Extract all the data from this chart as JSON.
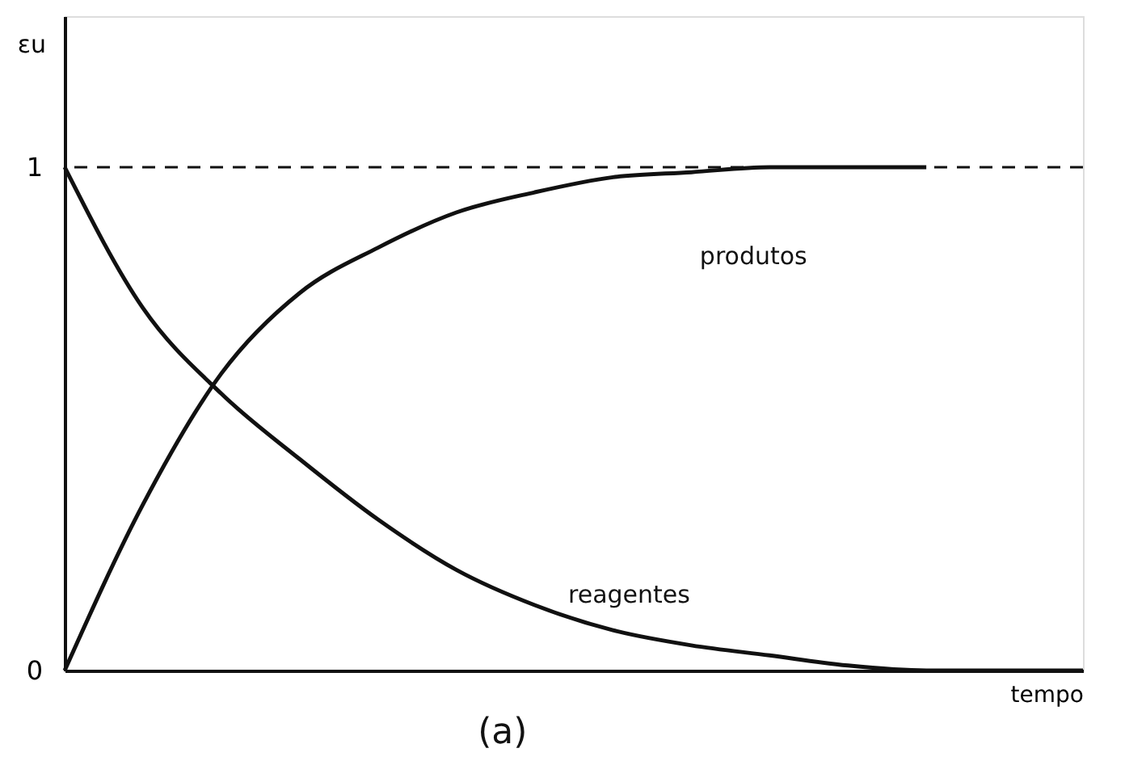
{
  "chart_data": {
    "type": "line",
    "ylabel": "εu",
    "xlabel": "tempo",
    "annotations": [
      "(a)"
    ],
    "categories": [
      null,
      null,
      null,
      null,
      null,
      null,
      null,
      null,
      null,
      null,
      null,
      null,
      null,
      null
    ],
    "series": [
      {
        "name": "reagentes",
        "color": "#111111",
        "values": [
          1,
          0.72,
          0.55,
          0.42,
          0.3,
          0.2,
          0.13,
          0.08,
          0.05,
          0.03,
          0.01,
          0,
          0,
          0
        ]
      },
      {
        "name": "produtos",
        "color": "#111111",
        "values": [
          0,
          0.33,
          0.59,
          0.75,
          0.84,
          0.91,
          0.95,
          0.98,
          0.99,
          1,
          1,
          1,
          null,
          null
        ]
      }
    ],
    "ylim": [
      0,
      1.3
    ],
    "yticks": [
      0,
      1
    ],
    "ref_lines": [
      {
        "axis": "y",
        "value": 1,
        "line_style": "dashed",
        "color": "#111111"
      }
    ],
    "legend": false,
    "grid": false,
    "marker": "none",
    "line_style": "solid"
  }
}
